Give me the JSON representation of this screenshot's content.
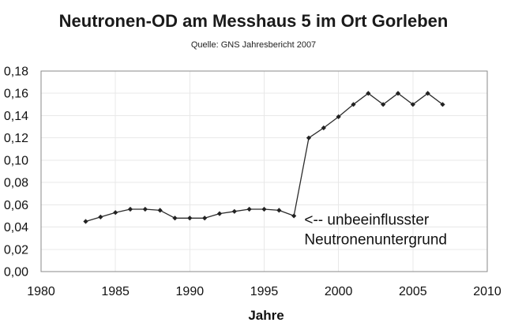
{
  "title": "Neutronen-OD am Messhaus 5 im Ort Gorleben",
  "subtitle": "Quelle: GNS Jahresbericht 2007",
  "chart_data": {
    "type": "line",
    "x": [
      1983,
      1984,
      1985,
      1986,
      1987,
      1988,
      1989,
      1990,
      1991,
      1992,
      1993,
      1994,
      1995,
      1996,
      1997,
      1998,
      1999,
      2000,
      2001,
      2002,
      2003,
      2004,
      2005,
      2006,
      2007
    ],
    "values": [
      0.045,
      0.049,
      0.053,
      0.056,
      0.056,
      0.055,
      0.048,
      0.048,
      0.048,
      0.052,
      0.054,
      0.056,
      0.056,
      0.055,
      0.05,
      0.12,
      0.129,
      0.139,
      0.15,
      0.16,
      0.15,
      0.16,
      0.15,
      0.16,
      0.15
    ],
    "title": "Neutronen-OD am Messhaus 5 im Ort Gorleben",
    "subtitle": "Quelle: GNS Jahresbericht 2007",
    "xlabel": "Jahre",
    "ylabel": "",
    "xlim": [
      1980,
      2010
    ],
    "ylim": [
      0,
      0.18
    ],
    "x_ticks": [
      1980,
      1985,
      1990,
      1995,
      2000,
      2005,
      2010
    ],
    "y_ticks": [
      {
        "value": 0.0,
        "label": "0,00"
      },
      {
        "value": 0.02,
        "label": "0,02"
      },
      {
        "value": 0.04,
        "label": "0,04"
      },
      {
        "value": 0.06,
        "label": "0,06"
      },
      {
        "value": 0.08,
        "label": "0,08"
      },
      {
        "value": 0.1,
        "label": "0,10"
      },
      {
        "value": 0.12,
        "label": "0,12"
      },
      {
        "value": 0.14,
        "label": "0,14"
      },
      {
        "value": 0.16,
        "label": "0,16"
      },
      {
        "value": 0.18,
        "label": "0,18"
      }
    ],
    "grid": true,
    "legend": false,
    "marker": "diamond",
    "annotation": {
      "lines": [
        "<-- unbeeinflusster",
        "Neutronenuntergrund"
      ],
      "anchor_x": 1997.7,
      "anchor_y": 0.05
    },
    "colors": {
      "line": "#2b2b2b",
      "marker": "#222222",
      "frame": "#8a8a8a",
      "grid": "#e8e8e8",
      "text": "#111111"
    }
  }
}
